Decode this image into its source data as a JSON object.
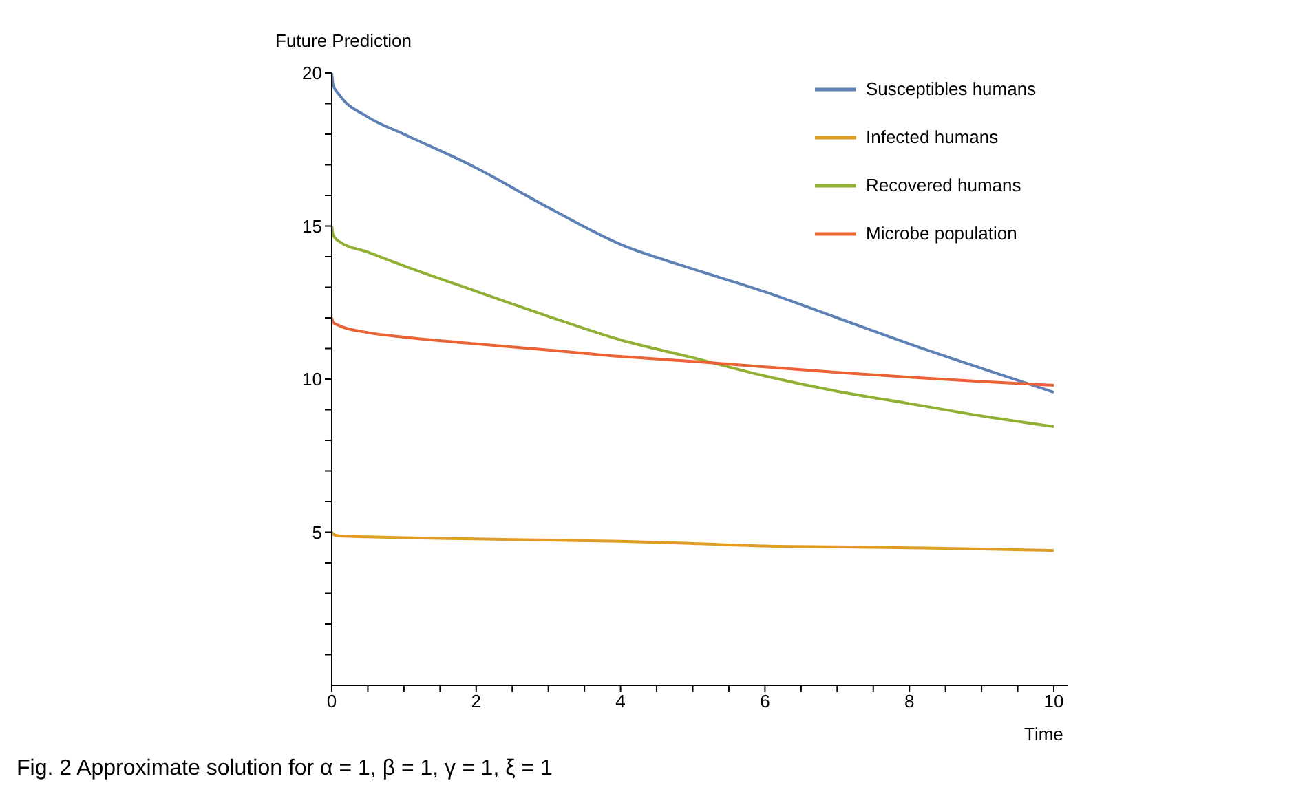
{
  "chart_data": {
    "type": "line",
    "xlabel": "Time",
    "ylabel": "Future Prediction",
    "annotations": [
      "Fig. 2 Approximate solution for α = 1, β = 1, γ = 1, ξ = 1"
    ],
    "x": [
      0,
      0.02,
      0.1,
      0.5,
      1,
      2,
      3,
      4,
      5,
      6,
      7,
      8,
      9,
      10
    ],
    "series": [
      {
        "name": "Susceptibles humans",
        "color": "#5e81b5",
        "values": [
          20,
          19.6,
          19.3,
          18.56,
          18.0,
          16.9,
          15.6,
          14.4,
          13.6,
          12.85,
          12.0,
          11.15,
          10.35,
          9.57
        ]
      },
      {
        "name": "Infected humans",
        "color": "#e19c24",
        "values": [
          5,
          4.93,
          4.88,
          4.85,
          4.82,
          4.78,
          4.74,
          4.7,
          4.63,
          4.55,
          4.52,
          4.49,
          4.45,
          4.4
        ]
      },
      {
        "name": "Recovered humans",
        "color": "#8fb032",
        "values": [
          15,
          14.7,
          14.5,
          14.15,
          13.7,
          12.87,
          12.05,
          11.28,
          10.7,
          10.1,
          9.6,
          9.2,
          8.8,
          8.45
        ]
      },
      {
        "name": "Microbe population",
        "color": "#eb6235",
        "values": [
          12,
          11.85,
          11.75,
          11.52,
          11.37,
          11.15,
          10.95,
          10.74,
          10.58,
          10.4,
          10.22,
          10.06,
          9.92,
          9.8
        ]
      }
    ],
    "xlim": [
      0,
      10.2
    ],
    "xticks": [
      0,
      {
        "value": 0.5,
        "label": null
      },
      {
        "value": 1,
        "label": null
      },
      {
        "value": 1.5,
        "label": null
      },
      2,
      {
        "value": 2.5,
        "label": null
      },
      {
        "value": 3,
        "label": null
      },
      {
        "value": 3.5,
        "label": null
      },
      4,
      {
        "value": 4.5,
        "label": null
      },
      {
        "value": 5,
        "label": null
      },
      {
        "value": 5.5,
        "label": null
      },
      6,
      {
        "value": 6.5,
        "label": null
      },
      {
        "value": 7,
        "label": null
      },
      {
        "value": 7.5,
        "label": null
      },
      8,
      {
        "value": 8.5,
        "label": null
      },
      {
        "value": 9,
        "label": null
      },
      {
        "value": 9.5,
        "label": null
      },
      10
    ],
    "ylim": [
      0,
      20
    ],
    "yticks": [
      {
        "value": 1,
        "label": null
      },
      {
        "value": 2,
        "label": null
      },
      {
        "value": 3,
        "label": null
      },
      {
        "value": 4,
        "label": null
      },
      5,
      {
        "value": 6,
        "label": null
      },
      {
        "value": 7,
        "label": null
      },
      {
        "value": 8,
        "label": null
      },
      {
        "value": 9,
        "label": null
      },
      10,
      {
        "value": 11,
        "label": null
      },
      {
        "value": 12,
        "label": null
      },
      {
        "value": 13,
        "label": null
      },
      {
        "value": 14,
        "label": null
      },
      15,
      {
        "value": 16,
        "label": null
      },
      {
        "value": 17,
        "label": null
      },
      {
        "value": 18,
        "label": null
      },
      {
        "value": 19,
        "label": null
      },
      20
    ],
    "legend": "top right",
    "marker": "none"
  }
}
